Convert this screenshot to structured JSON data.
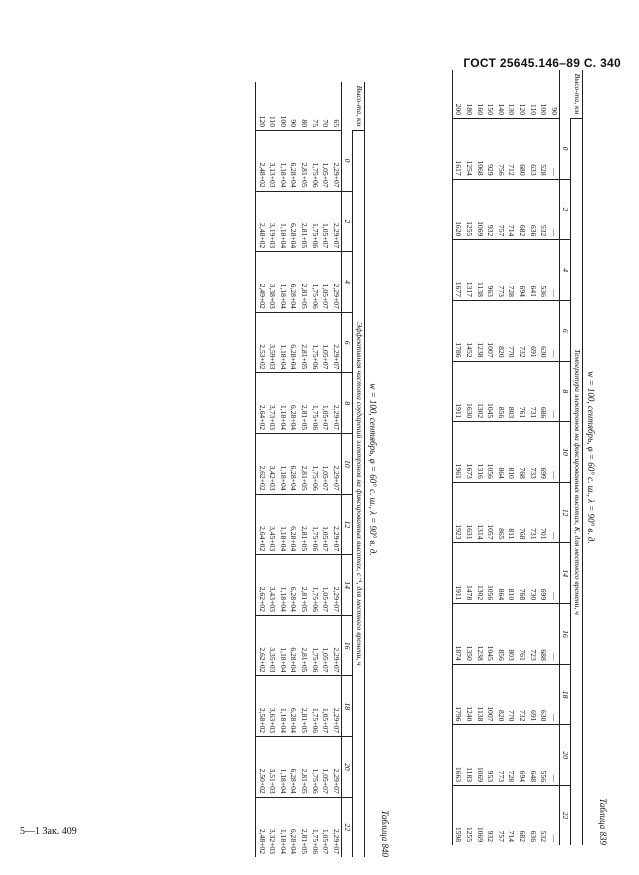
{
  "header": {
    "standard": "ГОСТ 25645.146–89 С. 340"
  },
  "footer": {
    "print_mark": "5—1 Зак. 409"
  },
  "table_a": {
    "label": "Таблица 839",
    "caption": "w = 100, сентябрь, φ = 60° с. ш., λ = 90° в. д.",
    "span_header": "Температура электронов на фиксированных высотах, К, для местного времени, ч",
    "height_header": "Высо-та, км",
    "hours": [
      "0",
      "2",
      "4",
      "6",
      "8",
      "10",
      "12",
      "14",
      "16",
      "18",
      "20",
      "22"
    ],
    "rows": [
      {
        "h": "90",
        "v": [
          "—",
          "—",
          "—",
          "—",
          "—",
          "—",
          "—",
          "—",
          "—",
          "—",
          "—",
          "—"
        ]
      },
      {
        "h": "100",
        "v": [
          "528",
          "532",
          "536",
          "630",
          "686",
          "699",
          "701",
          "699",
          "688",
          "630",
          "556",
          "532"
        ]
      },
      {
        "h": "110",
        "v": [
          "633",
          "636",
          "641",
          "691",
          "731",
          "733",
          "731",
          "730",
          "723",
          "691",
          "648",
          "636"
        ]
      },
      {
        "h": "120",
        "v": [
          "680",
          "682",
          "694",
          "732",
          "761",
          "768",
          "768",
          "768",
          "761",
          "732",
          "694",
          "682"
        ]
      },
      {
        "h": "130",
        "v": [
          "712",
          "714",
          "728",
          "770",
          "803",
          "810",
          "811",
          "810",
          "803",
          "770",
          "728",
          "714"
        ]
      },
      {
        "h": "140",
        "v": [
          "756",
          "757",
          "773",
          "820",
          "856",
          "864",
          "865",
          "864",
          "856",
          "820",
          "773",
          "757"
        ]
      },
      {
        "h": "150",
        "v": [
          "929",
          "932",
          "963",
          "1007",
          "1045",
          "1056",
          "1057",
          "1056",
          "1045",
          "1007",
          "953",
          "932"
        ]
      },
      {
        "h": "160",
        "v": [
          "1068",
          "1069",
          "1138",
          "1238",
          "1302",
          "1316",
          "1314",
          "1302",
          "1238",
          "1138",
          "1069",
          "1069"
        ]
      },
      {
        "h": "180",
        "v": [
          "1254",
          "1255",
          "1317",
          "1452",
          "1630",
          "1673",
          "1631",
          "1478",
          "1350",
          "1240",
          "1183",
          "1255"
        ]
      },
      {
        "h": "200",
        "v": [
          "1617",
          "1620",
          "1677",
          "1786",
          "1911",
          "1961",
          "1923",
          "1911",
          "1874",
          "1796",
          "1663",
          "1598"
        ]
      }
    ]
  },
  "table_b": {
    "label": "Таблица 840",
    "caption": "w = 100, сентябрь, φ = 60° с. ш., λ = 90° в. д.",
    "span_header": "Эффективная частота соударений электронов на фиксированных высотах, с⁻¹, для местного времени, ч",
    "height_header": "Высо-та, км",
    "hours": [
      "0",
      "2",
      "4",
      "6",
      "8",
      "10",
      "12",
      "14",
      "16",
      "18",
      "20",
      "22"
    ],
    "rows": [
      {
        "h": "65",
        "v": [
          "2,29+07",
          "2,29+07",
          "2,29+07",
          "2,29+07",
          "2,29+07",
          "2,29+07",
          "2,29+07",
          "2,29+07",
          "2,29+07",
          "2,29+07",
          "2,29+07",
          "2,29+07"
        ]
      },
      {
        "h": "70",
        "v": [
          "1,05+07",
          "1,05+07",
          "1,05+07",
          "1,05+07",
          "1,05+07",
          "1,05+07",
          "1,05+07",
          "1,05+07",
          "1,05+07",
          "1,05+07",
          "1,05+07",
          "1,05+07"
        ]
      },
      {
        "h": "75",
        "v": [
          "1,75+06",
          "1,75+06",
          "1,75+06",
          "1,75+06",
          "1,75+06",
          "1,75+06",
          "1,75+06",
          "1,75+06",
          "1,75+06",
          "1,75+06",
          "1,75+06",
          "1,75+06"
        ]
      },
      {
        "h": "80",
        "v": [
          "2,81+05",
          "2,81+05",
          "2,81+05",
          "2,81+05",
          "2,81+05",
          "2,81+05",
          "2,81+05",
          "2,81+05",
          "2,81+05",
          "2,81+05",
          "2,81+05",
          "2,81+05"
        ]
      },
      {
        "h": "90",
        "v": [
          "6,28+04",
          "6,28+04",
          "6,28+04",
          "6,28+04",
          "6,28+04",
          "6,28+04",
          "6,28+04",
          "6,28+04",
          "6,28+04",
          "6,28+04",
          "6,28+04",
          "6,28+04"
        ]
      },
      {
        "h": "100",
        "v": [
          "1,18+04",
          "1,18+04",
          "1,18+04",
          "1,18+04",
          "1,18+04",
          "1,18+04",
          "1,18+04",
          "1,18+04",
          "1,18+04",
          "1,18+04",
          "1,18+04",
          "1,18+04"
        ]
      },
      {
        "h": "110",
        "v": [
          "3,13+03",
          "3,19+03",
          "3,38+03",
          "3,59+03",
          "3,73+03",
          "3,42+03",
          "3,45+03",
          "3,43+03",
          "3,35+03",
          "3,63+03",
          "3,51+03",
          "3,32+03"
        ]
      },
      {
        "h": "120",
        "v": [
          "2,48+02",
          "2,48+02",
          "2,49+02",
          "2,53+02",
          "2,64+02",
          "2,62+02",
          "2,64+02",
          "2,62+02",
          "2,62+02",
          "2,58+02",
          "2,50+02",
          "2,48+02"
        ]
      }
    ]
  }
}
